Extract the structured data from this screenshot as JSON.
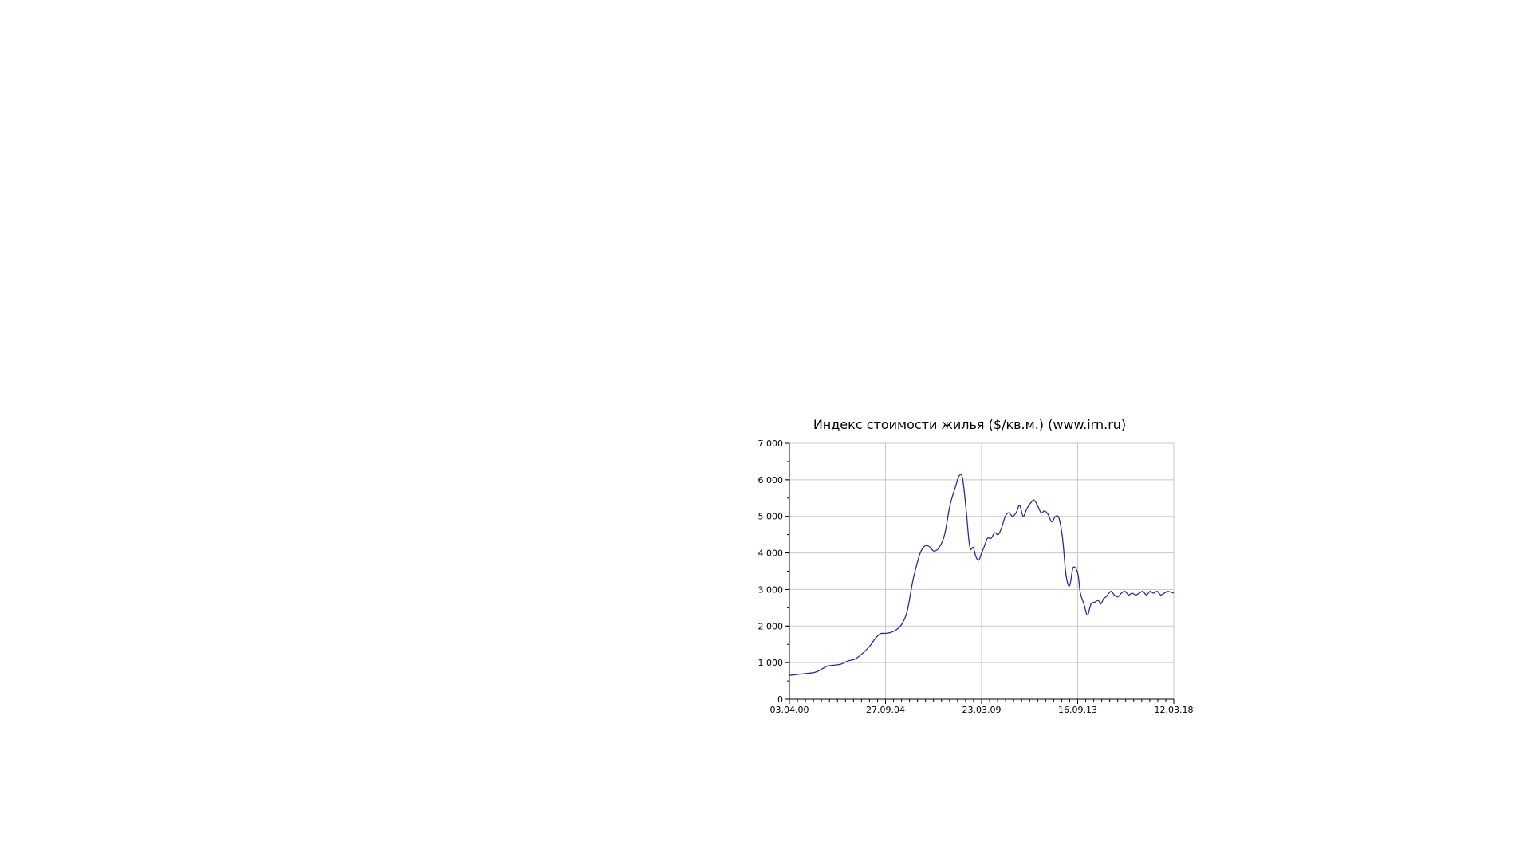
{
  "chart_data": {
    "type": "line",
    "title": "Индекс стоимости жилья ($/кв.м.) (www.irn.ru)",
    "xlabel": "",
    "ylabel": "",
    "ylim": [
      0,
      7000
    ],
    "yticks": [
      0,
      1000,
      2000,
      3000,
      4000,
      5000,
      6000,
      7000
    ],
    "ytick_labels": [
      "0",
      "1 000",
      "2 000",
      "3 000",
      "4 000",
      "5 000",
      "6 000",
      "7 000"
    ],
    "xlim": [
      "2000-04-03",
      "2018-03-12"
    ],
    "xticks": [
      "2000-04-03",
      "2004-09-27",
      "2009-03-23",
      "2013-09-16",
      "2018-03-12"
    ],
    "xtick_labels": [
      "03.04.00",
      "27.09.04",
      "23.03.09",
      "16.09.13",
      "12.03.18"
    ],
    "grid": true,
    "legend": "none",
    "line_color": "#2a2aa0",
    "series": [
      {
        "x": [
          "2000-04-03",
          "2000-09-01",
          "2001-03-01",
          "2001-06-01",
          "2001-09-01",
          "2002-01-01",
          "2002-05-01",
          "2002-09-01",
          "2003-01-01",
          "2003-05-01",
          "2003-09-01",
          "2004-01-01",
          "2004-04-01",
          "2004-07-01",
          "2004-09-27",
          "2005-01-01",
          "2005-04-01",
          "2005-07-01",
          "2005-10-01",
          "2006-01-01",
          "2006-03-01",
          "2006-05-01",
          "2006-07-01",
          "2006-09-01",
          "2006-11-01",
          "2007-01-01",
          "2007-04-01",
          "2007-07-01",
          "2007-10-01",
          "2008-01-01",
          "2008-03-01",
          "2008-05-01",
          "2008-07-01",
          "2008-08-15",
          "2008-09-15",
          "2008-11-01",
          "2008-12-15",
          "2009-02-01",
          "2009-03-23",
          "2009-05-01",
          "2009-07-01",
          "2009-09-01",
          "2009-11-01",
          "2010-01-01",
          "2010-03-01",
          "2010-05-01",
          "2010-07-01",
          "2010-09-01",
          "2010-11-01",
          "2011-01-01",
          "2011-03-01",
          "2011-05-01",
          "2011-07-01",
          "2011-09-01",
          "2011-11-01",
          "2012-01-01",
          "2012-03-01",
          "2012-05-01",
          "2012-07-01",
          "2012-09-01",
          "2012-11-01",
          "2013-01-01",
          "2013-03-01",
          "2013-05-01",
          "2013-07-01",
          "2013-09-16",
          "2013-11-01",
          "2014-01-01",
          "2014-03-01",
          "2014-05-01",
          "2014-07-01",
          "2014-09-01",
          "2014-10-15",
          "2014-12-01",
          "2015-01-15",
          "2015-03-01",
          "2015-04-15",
          "2015-06-01",
          "2015-08-01",
          "2015-10-01",
          "2015-12-01",
          "2016-02-01",
          "2016-04-01",
          "2016-06-01",
          "2016-08-01",
          "2016-10-01",
          "2016-12-01",
          "2017-02-01",
          "2017-04-01",
          "2017-06-01",
          "2017-08-01",
          "2017-10-01",
          "2017-12-01",
          "2018-03-12"
        ],
        "values": [
          650,
          680,
          710,
          730,
          790,
          900,
          930,
          960,
          1050,
          1100,
          1250,
          1450,
          1650,
          1790,
          1800,
          1830,
          1900,
          2050,
          2400,
          3200,
          3600,
          3950,
          4150,
          4200,
          4150,
          4050,
          4150,
          4500,
          5300,
          5800,
          6100,
          6050,
          5200,
          4400,
          4100,
          4150,
          3900,
          3800,
          4000,
          4150,
          4400,
          4400,
          4550,
          4500,
          4700,
          5000,
          5100,
          5000,
          5100,
          5300,
          5000,
          5200,
          5350,
          5450,
          5300,
          5100,
          5150,
          5050,
          4850,
          5000,
          4950,
          4400,
          3400,
          3100,
          3600,
          3450,
          2900,
          2600,
          2300,
          2600,
          2650,
          2700,
          2600,
          2750,
          2800,
          2900,
          2950,
          2850,
          2800,
          2900,
          2950,
          2850,
          2900,
          2850,
          2900,
          2950,
          2850,
          2950,
          2900,
          2950,
          2850,
          2900,
          2950,
          2900
        ]
      }
    ]
  }
}
